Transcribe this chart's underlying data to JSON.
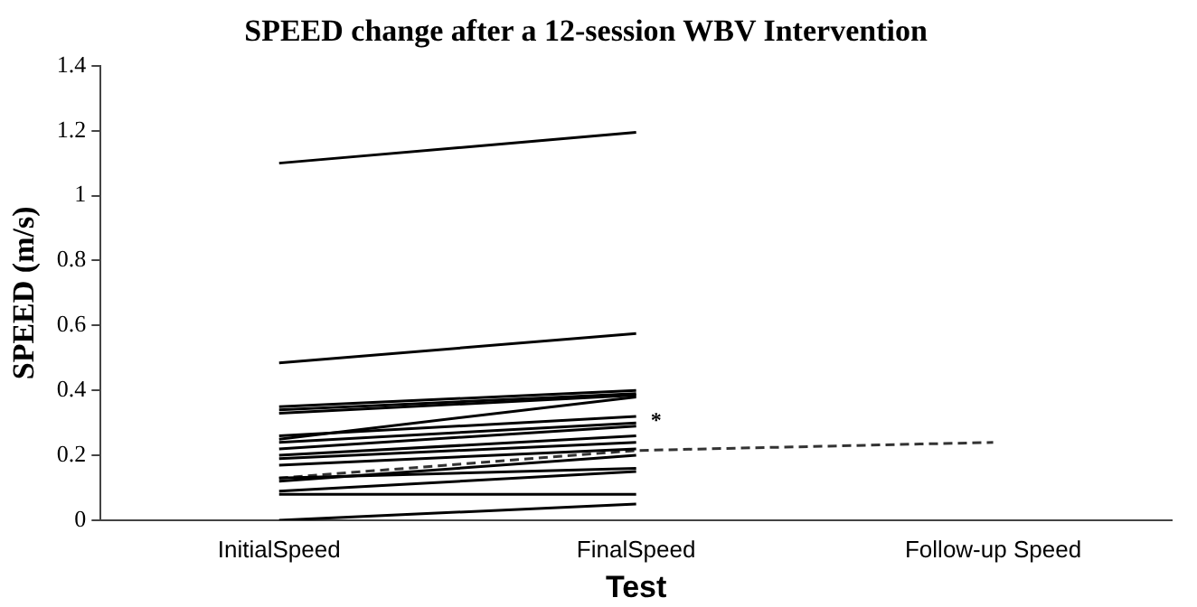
{
  "chart_data": {
    "type": "line",
    "title": "SPEED change after a 12-session WBV Intervention",
    "xlabel": "Test",
    "ylabel": "SPEED (m/s)",
    "categories": [
      "InitialSpeed",
      "FinalSpeed",
      "Follow-up Speed"
    ],
    "ylim": [
      0,
      1.4
    ],
    "yticks": [
      0,
      0.2,
      0.4,
      0.6,
      0.8,
      1,
      1.2,
      1.4
    ],
    "grid": false,
    "legend": false,
    "marker": "none",
    "series": [
      {
        "color": "#000000",
        "values": [
          1.1,
          1.195,
          null
        ]
      },
      {
        "color": "#000000",
        "values": [
          0.485,
          0.575,
          null
        ]
      },
      {
        "color": "#000000",
        "values": [
          0.35,
          0.4,
          null
        ]
      },
      {
        "color": "#000000",
        "values": [
          0.34,
          0.39,
          null
        ]
      },
      {
        "color": "#000000",
        "values": [
          0.33,
          0.385,
          null
        ]
      },
      {
        "color": "#000000",
        "values": [
          0.25,
          0.38,
          null
        ]
      },
      {
        "color": "#000000",
        "values": [
          0.26,
          0.32,
          null
        ]
      },
      {
        "color": "#000000",
        "values": [
          0.24,
          0.3,
          null
        ]
      },
      {
        "color": "#000000",
        "values": [
          0.22,
          0.29,
          null
        ]
      },
      {
        "color": "#000000",
        "values": [
          0.2,
          0.26,
          null
        ]
      },
      {
        "color": "#000000",
        "values": [
          0.19,
          0.24,
          null
        ]
      },
      {
        "color": "#000000",
        "values": [
          0.17,
          0.22,
          null
        ]
      },
      {
        "color": "#000000",
        "values": [
          0.12,
          0.2,
          null
        ]
      },
      {
        "color": "#000000",
        "values": [
          0.13,
          0.16,
          null
        ]
      },
      {
        "color": "#000000",
        "values": [
          0.09,
          0.15,
          null
        ]
      },
      {
        "color": "#000000",
        "values": [
          0.08,
          0.08,
          null
        ]
      },
      {
        "color": "#000000",
        "values": [
          0,
          0.05,
          null
        ]
      },
      {
        "color": "#333333",
        "line_style": "dashed",
        "values": [
          0.13,
          0.215,
          0.24
        ]
      }
    ],
    "annotations": [
      {
        "text": "*",
        "x": "FinalSpeed",
        "y": 0.32
      }
    ]
  }
}
